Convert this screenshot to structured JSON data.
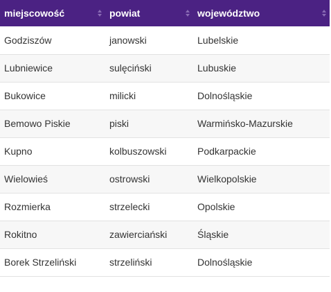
{
  "table": {
    "columns": [
      {
        "label": "miejscowość"
      },
      {
        "label": "powiat"
      },
      {
        "label": "województwo"
      }
    ],
    "rows": [
      {
        "miejscowosc": "Godziszów",
        "powiat": "janowski",
        "wojewodztwo": "Lubelskie"
      },
      {
        "miejscowosc": "Lubniewice",
        "powiat": "sulęciński",
        "wojewodztwo": "Lubuskie"
      },
      {
        "miejscowosc": "Bukowice",
        "powiat": "milicki",
        "wojewodztwo": "Dolnośląskie"
      },
      {
        "miejscowosc": "Bemowo Piskie",
        "powiat": "piski",
        "wojewodztwo": "Warmińsko-Mazurskie"
      },
      {
        "miejscowosc": "Kupno",
        "powiat": "kolbuszowski",
        "wojewodztwo": "Podkarpackie"
      },
      {
        "miejscowosc": "Wielowieś",
        "powiat": "ostrowski",
        "wojewodztwo": "Wielkopolskie"
      },
      {
        "miejscowosc": "Rozmierka",
        "powiat": "strzelecki",
        "wojewodztwo": "Opolskie"
      },
      {
        "miejscowosc": "Rokitno",
        "powiat": "zawierciański",
        "wojewodztwo": "Śląskie"
      },
      {
        "miejscowosc": "Borek Strzeliński",
        "powiat": "strzeliński",
        "wojewodztwo": "Dolnośląskie"
      }
    ]
  },
  "colors": {
    "header_bg": "#4b2283",
    "header_text": "#ffffff",
    "row_alt_bg": "#f7f7f7",
    "row_border": "#e2e2e2"
  },
  "icons": {
    "sort": "sort-icon"
  }
}
